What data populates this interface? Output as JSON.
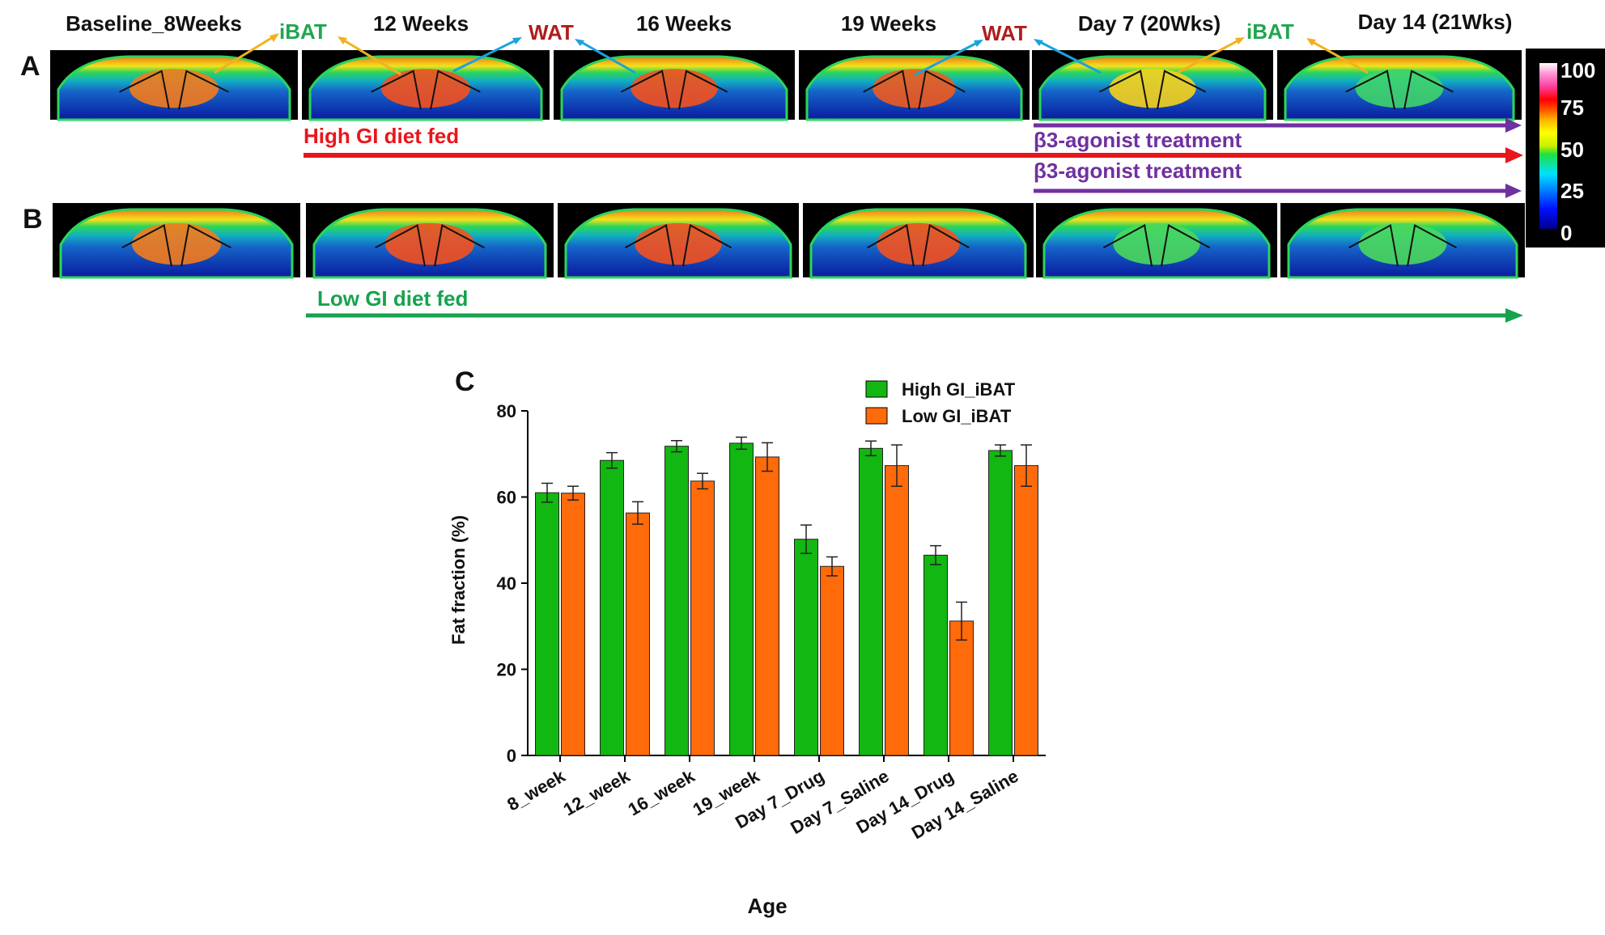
{
  "panel_letters": {
    "a": "A",
    "b": "B",
    "c": "C"
  },
  "timepoints": [
    "Baseline_8Weeks",
    "12 Weeks",
    "16 Weeks",
    "19 Weeks",
    "Day 7 (20Wks)",
    "Day 14 (21Wks)"
  ],
  "tissue_labels": [
    {
      "text": "iBAT",
      "color": "#1fa650"
    },
    {
      "text": "WAT",
      "color": "#b01c1c"
    },
    {
      "text": "WAT",
      "color": "#b01c1c"
    },
    {
      "text": "iBAT",
      "color": "#1fa650"
    }
  ],
  "arrow_colors": {
    "ibat_pointer": "#f0b21c",
    "wat_pointer": "#1aa3dd"
  },
  "timeline": {
    "high_gi": {
      "label": "High GI diet fed",
      "color": "#e8161b"
    },
    "beta3_top": {
      "label": "β3-agonist treatment",
      "color": "#7030a0"
    },
    "beta3_bottom": {
      "label": "β3-agonist treatment",
      "color": "#7030a0"
    },
    "low_gi": {
      "label": "Low GI diet fed",
      "color": "#16a34e"
    }
  },
  "colorbar": {
    "ticks": [
      "100",
      "75",
      "50",
      "25",
      "0"
    ]
  },
  "chart_data": {
    "type": "bar",
    "categories": [
      "8_week",
      "12_week",
      "16_week",
      "19_week",
      "Day 7_Drug",
      "Day 7_Saline",
      "Day 14_Drug",
      "Day 14_Saline"
    ],
    "series": [
      {
        "name": "High GI_iBAT",
        "color": "#12b712",
        "values": [
          61,
          68.5,
          71.8,
          72.5,
          50.2,
          71.3,
          46.5,
          70.8
        ],
        "errors": [
          2.2,
          1.8,
          1.3,
          1.4,
          3.3,
          1.7,
          2.2,
          1.3
        ]
      },
      {
        "name": "Low GI_iBAT",
        "color": "#ff6a0a",
        "values": [
          60.9,
          56.3,
          63.7,
          69.3,
          43.9,
          67.3,
          31.2,
          67.3
        ],
        "errors": [
          1.6,
          2.6,
          1.8,
          3.3,
          2.2,
          4.8,
          4.4,
          4.8
        ]
      }
    ],
    "xlabel": "Age",
    "ylabel": "Fat fraction (%)",
    "ylim": [
      0,
      80
    ],
    "yticks": [
      0,
      20,
      40,
      60,
      80
    ],
    "legend": "top-right"
  }
}
